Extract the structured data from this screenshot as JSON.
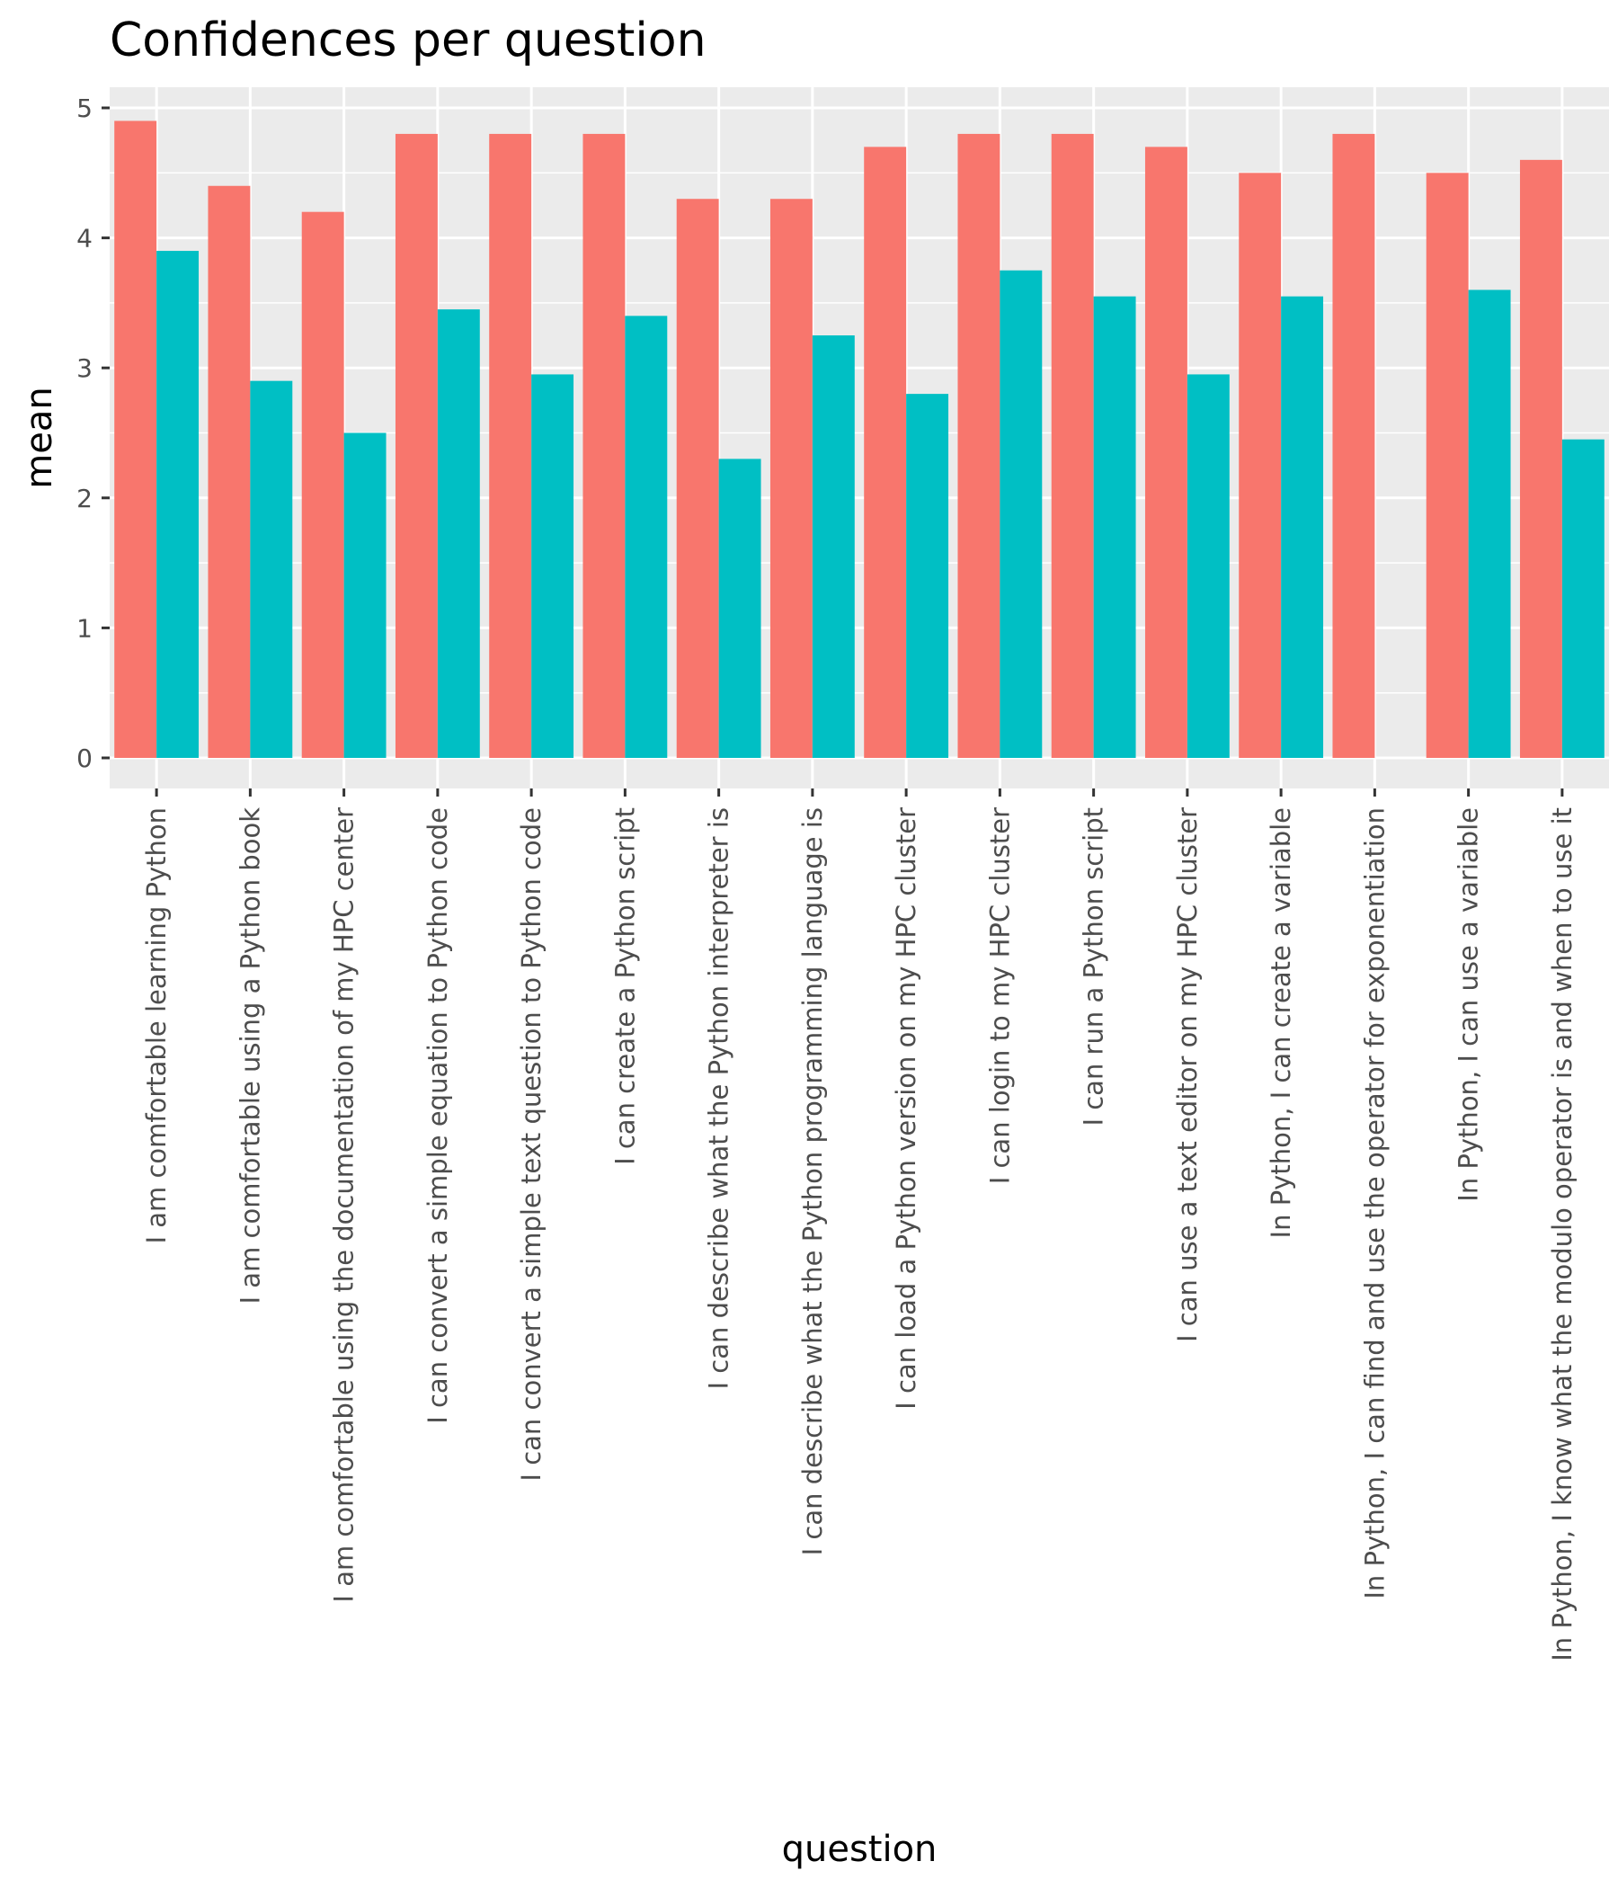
{
  "chart_data": {
    "type": "bar",
    "title": "Confidences per question",
    "xlabel": "question",
    "ylabel": "mean",
    "ylim": [
      0,
      5
    ],
    "yticks": [
      0,
      1,
      2,
      3,
      4,
      5
    ],
    "grid": true,
    "legend": "none",
    "colors": [
      "#F8766D",
      "#00BFC4"
    ],
    "categories": [
      "I am comfortable learning Python",
      "I am comfortable using a Python book",
      "I am comfortable using the documentation of my HPC center",
      "I can convert a simple equation to Python code",
      "I can convert a simple text question to Python code",
      "I can create a Python script",
      "I can describe what the Python interpreter is",
      "I can describe what the Python programming language is",
      "I can load a Python version on my HPC cluster",
      "I can login to my HPC cluster",
      "I can run a Python script",
      "I can use a text editor on my HPC cluster",
      "In Python, I can create a variable",
      "In Python, I can find and use the operator for exponentiation",
      "In Python, I can use a variable",
      "In Python, I know what the modulo operator is and when to use it"
    ],
    "series": [
      {
        "values": [
          4.9,
          4.4,
          4.2,
          4.8,
          4.8,
          4.8,
          4.3,
          4.3,
          4.7,
          4.8,
          4.8,
          4.7,
          4.5,
          4.8,
          4.5,
          4.6
        ]
      },
      {
        "values": [
          3.9,
          2.9,
          2.5,
          3.45,
          2.95,
          3.4,
          2.3,
          3.25,
          2.8,
          3.75,
          3.55,
          2.95,
          3.55,
          0,
          3.6,
          2.45
        ]
      }
    ]
  }
}
